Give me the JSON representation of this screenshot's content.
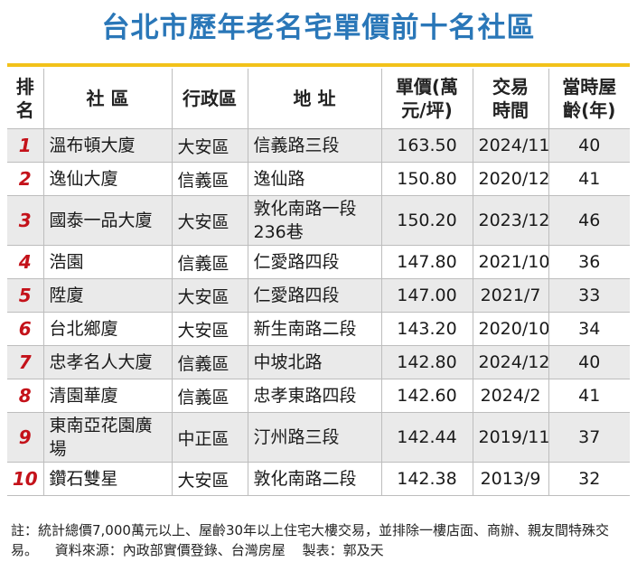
{
  "title": "台北市歷年老名宅單價前十名社區",
  "headers": {
    "rank": "排名",
    "name": "社 區",
    "district": "行政區",
    "address": "地 址",
    "price": "單價(萬元/坪)",
    "date": "交易時間",
    "age": "當時屋齡(年)"
  },
  "rows": [
    {
      "rank": "1",
      "name": "溫布頓大廈",
      "district": "大安區",
      "address": "信義路三段",
      "price": "163.50",
      "date": "2024/11",
      "age": "40"
    },
    {
      "rank": "2",
      "name": "逸仙大廈",
      "district": "信義區",
      "address": "逸仙路",
      "price": "150.80",
      "date": "2020/12",
      "age": "41"
    },
    {
      "rank": "3",
      "name": "國泰一品大廈",
      "district": "大安區",
      "address": "敦化南路一段236巷",
      "price": "150.20",
      "date": "2023/12",
      "age": "46"
    },
    {
      "rank": "4",
      "name": "浩園",
      "district": "信義區",
      "address": "仁愛路四段",
      "price": "147.80",
      "date": "2021/10",
      "age": "36"
    },
    {
      "rank": "5",
      "name": "陞廈",
      "district": "大安區",
      "address": "仁愛路四段",
      "price": "147.00",
      "date": "2021/7",
      "age": "33"
    },
    {
      "rank": "6",
      "name": "台北鄉廈",
      "district": "大安區",
      "address": "新生南路二段",
      "price": "143.20",
      "date": "2020/10",
      "age": "34"
    },
    {
      "rank": "7",
      "name": "忠孝名人大廈",
      "district": "信義區",
      "address": "中坡北路",
      "price": "142.80",
      "date": "2024/12",
      "age": "40"
    },
    {
      "rank": "8",
      "name": "清園華廈",
      "district": "信義區",
      "address": "忠孝東路四段",
      "price": "142.60",
      "date": "2024/2",
      "age": "41"
    },
    {
      "rank": "9",
      "name": "東南亞花園廣場",
      "district": "中正區",
      "address": "汀州路三段",
      "price": "142.44",
      "date": "2019/11",
      "age": "37"
    },
    {
      "rank": "10",
      "name": "鑽石雙星",
      "district": "大安區",
      "address": "敦化南路二段",
      "price": "142.38",
      "date": "2013/9",
      "age": "32"
    }
  ],
  "footnote": {
    "note": "註：統計總價7,000萬元以上、屋齡30年以上住宅大樓交易，並排除一樓店面、商辦、親友間特殊交易。",
    "source": "資料來源：內政部實價登錄、台灣房屋",
    "maker": "製表：郭及天"
  },
  "colors": {
    "title": "#2a77b8",
    "rank": "#c4121a",
    "rule": "#f2c21a",
    "stripe": "#eaeaea"
  }
}
